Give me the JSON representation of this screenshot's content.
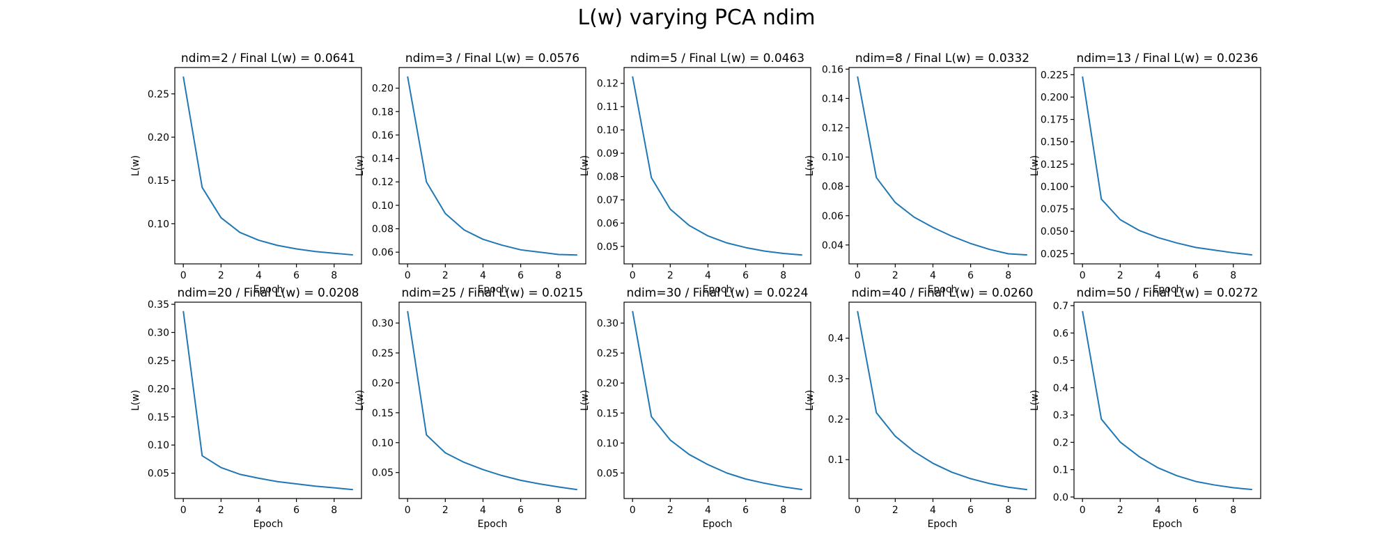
{
  "figure": {
    "title": "L(w) varying PCA ndim"
  },
  "style": {
    "line_color": "#1f77b4",
    "axes_color": "#000000",
    "background": "#ffffff"
  },
  "chart_data": [
    {
      "type": "line",
      "title": "ndim=2 / Final L(w) = 0.0641",
      "xlabel": "Epoch",
      "ylabel": "L(w)",
      "grid": false,
      "x": [
        0,
        1,
        2,
        3,
        4,
        5,
        6,
        7,
        8,
        9
      ],
      "series": [
        {
          "values": [
            0.27,
            0.142,
            0.107,
            0.09,
            0.081,
            0.075,
            0.071,
            0.068,
            0.066,
            0.0641
          ]
        }
      ],
      "xticks": [
        0,
        2,
        4,
        6,
        8
      ],
      "yticks": [
        0.1,
        0.15,
        0.2,
        0.25
      ],
      "ytick_labels": [
        "0.10",
        "0.15",
        "0.20",
        "0.25"
      ],
      "ylim": [
        0.0537,
        0.2804
      ],
      "xlim": [
        -0.45,
        9.45
      ]
    },
    {
      "type": "line",
      "title": "ndim=3 / Final L(w) = 0.0576",
      "xlabel": "Epoch",
      "ylabel": "L(w)",
      "grid": false,
      "x": [
        0,
        1,
        2,
        3,
        4,
        5,
        6,
        7,
        8,
        9
      ],
      "series": [
        {
          "values": [
            0.21,
            0.12,
            0.093,
            0.079,
            0.071,
            0.066,
            0.062,
            0.06,
            0.058,
            0.0576
          ]
        }
      ],
      "xticks": [
        0,
        2,
        4,
        6,
        8
      ],
      "yticks": [
        0.06,
        0.08,
        0.1,
        0.12,
        0.14,
        0.16,
        0.18,
        0.2
      ],
      "ytick_labels": [
        "0.06",
        "0.08",
        "0.10",
        "0.12",
        "0.14",
        "0.16",
        "0.18",
        "0.20"
      ],
      "ylim": [
        0.05,
        0.2176
      ],
      "xlim": [
        -0.45,
        9.45
      ]
    },
    {
      "type": "line",
      "title": "ndim=5 / Final L(w) = 0.0463",
      "xlabel": "Epoch",
      "ylabel": "L(w)",
      "grid": false,
      "x": [
        0,
        1,
        2,
        3,
        4,
        5,
        6,
        7,
        8,
        9
      ],
      "series": [
        {
          "values": [
            0.123,
            0.0795,
            0.066,
            0.059,
            0.0545,
            0.0515,
            0.0495,
            0.048,
            0.047,
            0.0463
          ]
        }
      ],
      "xticks": [
        0,
        2,
        4,
        6,
        8
      ],
      "yticks": [
        0.05,
        0.06,
        0.07,
        0.08,
        0.09,
        0.1,
        0.11,
        0.12
      ],
      "ytick_labels": [
        "0.05",
        "0.06",
        "0.07",
        "0.08",
        "0.09",
        "0.10",
        "0.11",
        "0.12"
      ],
      "ylim": [
        0.0425,
        0.1268
      ],
      "xlim": [
        -0.45,
        9.45
      ]
    },
    {
      "type": "line",
      "title": "ndim=8 / Final L(w) = 0.0332",
      "xlabel": "Epoch",
      "ylabel": "L(w)",
      "grid": false,
      "x": [
        0,
        1,
        2,
        3,
        4,
        5,
        6,
        7,
        8,
        9
      ],
      "series": [
        {
          "values": [
            0.155,
            0.086,
            0.069,
            0.059,
            0.052,
            0.046,
            0.041,
            0.037,
            0.034,
            0.0332
          ]
        }
      ],
      "xticks": [
        0,
        2,
        4,
        6,
        8
      ],
      "yticks": [
        0.04,
        0.06,
        0.08,
        0.1,
        0.12,
        0.14,
        0.16
      ],
      "ytick_labels": [
        "0.04",
        "0.06",
        "0.08",
        "0.10",
        "0.12",
        "0.14",
        "0.16"
      ],
      "ylim": [
        0.0271,
        0.1611
      ],
      "xlim": [
        -0.45,
        9.45
      ]
    },
    {
      "type": "line",
      "title": "ndim=13 / Final L(w) = 0.0236",
      "xlabel": "Epoch",
      "ylabel": "L(w)",
      "grid": false,
      "x": [
        0,
        1,
        2,
        3,
        4,
        5,
        6,
        7,
        8,
        9
      ],
      "series": [
        {
          "values": [
            0.223,
            0.086,
            0.063,
            0.051,
            0.043,
            0.037,
            0.032,
            0.029,
            0.026,
            0.0236
          ]
        }
      ],
      "xticks": [
        0,
        2,
        4,
        6,
        8
      ],
      "yticks": [
        0.025,
        0.05,
        0.075,
        0.1,
        0.125,
        0.15,
        0.175,
        0.2,
        0.225
      ],
      "ytick_labels": [
        "0.025",
        "0.050",
        "0.075",
        "0.100",
        "0.125",
        "0.150",
        "0.175",
        "0.200",
        "0.225"
      ],
      "ylim": [
        0.0136,
        0.233
      ],
      "xlim": [
        -0.45,
        9.45
      ]
    },
    {
      "type": "line",
      "title": "ndim=20 / Final L(w) = 0.0208",
      "xlabel": "Epoch",
      "ylabel": "L(w)",
      "grid": false,
      "x": [
        0,
        1,
        2,
        3,
        4,
        5,
        6,
        7,
        8,
        9
      ],
      "series": [
        {
          "values": [
            0.338,
            0.081,
            0.06,
            0.048,
            0.041,
            0.035,
            0.031,
            0.027,
            0.024,
            0.0208
          ]
        }
      ],
      "xticks": [
        0,
        2,
        4,
        6,
        8
      ],
      "yticks": [
        0.05,
        0.1,
        0.15,
        0.2,
        0.25,
        0.3,
        0.35
      ],
      "ytick_labels": [
        "0.05",
        "0.10",
        "0.15",
        "0.20",
        "0.25",
        "0.30",
        "0.35"
      ],
      "ylim": [
        0.005,
        0.3538
      ],
      "xlim": [
        -0.45,
        9.45
      ]
    },
    {
      "type": "line",
      "title": "ndim=25 / Final L(w) = 0.0215",
      "xlabel": "Epoch",
      "ylabel": "L(w)",
      "grid": false,
      "x": [
        0,
        1,
        2,
        3,
        4,
        5,
        6,
        7,
        8,
        9
      ],
      "series": [
        {
          "values": [
            0.32,
            0.113,
            0.083,
            0.067,
            0.055,
            0.045,
            0.037,
            0.031,
            0.026,
            0.0215
          ]
        }
      ],
      "xticks": [
        0,
        2,
        4,
        6,
        8
      ],
      "yticks": [
        0.05,
        0.1,
        0.15,
        0.2,
        0.25,
        0.3
      ],
      "ytick_labels": [
        "0.05",
        "0.10",
        "0.15",
        "0.20",
        "0.25",
        "0.30"
      ],
      "ylim": [
        0.0066,
        0.3349
      ],
      "xlim": [
        -0.45,
        9.45
      ]
    },
    {
      "type": "line",
      "title": "ndim=30 / Final L(w) = 0.0224",
      "xlabel": "Epoch",
      "ylabel": "L(w)",
      "grid": false,
      "x": [
        0,
        1,
        2,
        3,
        4,
        5,
        6,
        7,
        8,
        9
      ],
      "series": [
        {
          "values": [
            0.32,
            0.144,
            0.105,
            0.081,
            0.064,
            0.05,
            0.04,
            0.033,
            0.027,
            0.0224
          ]
        }
      ],
      "xticks": [
        0,
        2,
        4,
        6,
        8
      ],
      "yticks": [
        0.05,
        0.1,
        0.15,
        0.2,
        0.25,
        0.3
      ],
      "ytick_labels": [
        "0.05",
        "0.10",
        "0.15",
        "0.20",
        "0.25",
        "0.30"
      ],
      "ylim": [
        0.0075,
        0.3349
      ],
      "xlim": [
        -0.45,
        9.45
      ]
    },
    {
      "type": "line",
      "title": "ndim=40 / Final L(w) = 0.0260",
      "xlabel": "Epoch",
      "ylabel": "L(w)",
      "grid": false,
      "x": [
        0,
        1,
        2,
        3,
        4,
        5,
        6,
        7,
        8,
        9
      ],
      "series": [
        {
          "values": [
            0.467,
            0.216,
            0.158,
            0.12,
            0.091,
            0.069,
            0.053,
            0.041,
            0.032,
            0.026
          ]
        }
      ],
      "xticks": [
        0,
        2,
        4,
        6,
        8
      ],
      "yticks": [
        0.1,
        0.2,
        0.3,
        0.4
      ],
      "ytick_labels": [
        "0.1",
        "0.2",
        "0.3",
        "0.4"
      ],
      "ylim": [
        0.004,
        0.489
      ],
      "xlim": [
        -0.45,
        9.45
      ]
    },
    {
      "type": "line",
      "title": "ndim=50 / Final L(w) = 0.0272",
      "xlabel": "Epoch",
      "ylabel": "L(w)",
      "grid": false,
      "x": [
        0,
        1,
        2,
        3,
        4,
        5,
        6,
        7,
        8,
        9
      ],
      "series": [
        {
          "values": [
            0.68,
            0.285,
            0.201,
            0.148,
            0.107,
            0.078,
            0.057,
            0.044,
            0.034,
            0.0272
          ]
        }
      ],
      "xticks": [
        0,
        2,
        4,
        6,
        8
      ],
      "yticks": [
        0.0,
        0.1,
        0.2,
        0.3,
        0.4,
        0.5,
        0.6,
        0.7
      ],
      "ytick_labels": [
        "0.0",
        "0.1",
        "0.2",
        "0.3",
        "0.4",
        "0.5",
        "0.6",
        "0.7"
      ],
      "ylim": [
        -0.0055,
        0.7127
      ],
      "xlim": [
        -0.45,
        9.45
      ]
    }
  ]
}
